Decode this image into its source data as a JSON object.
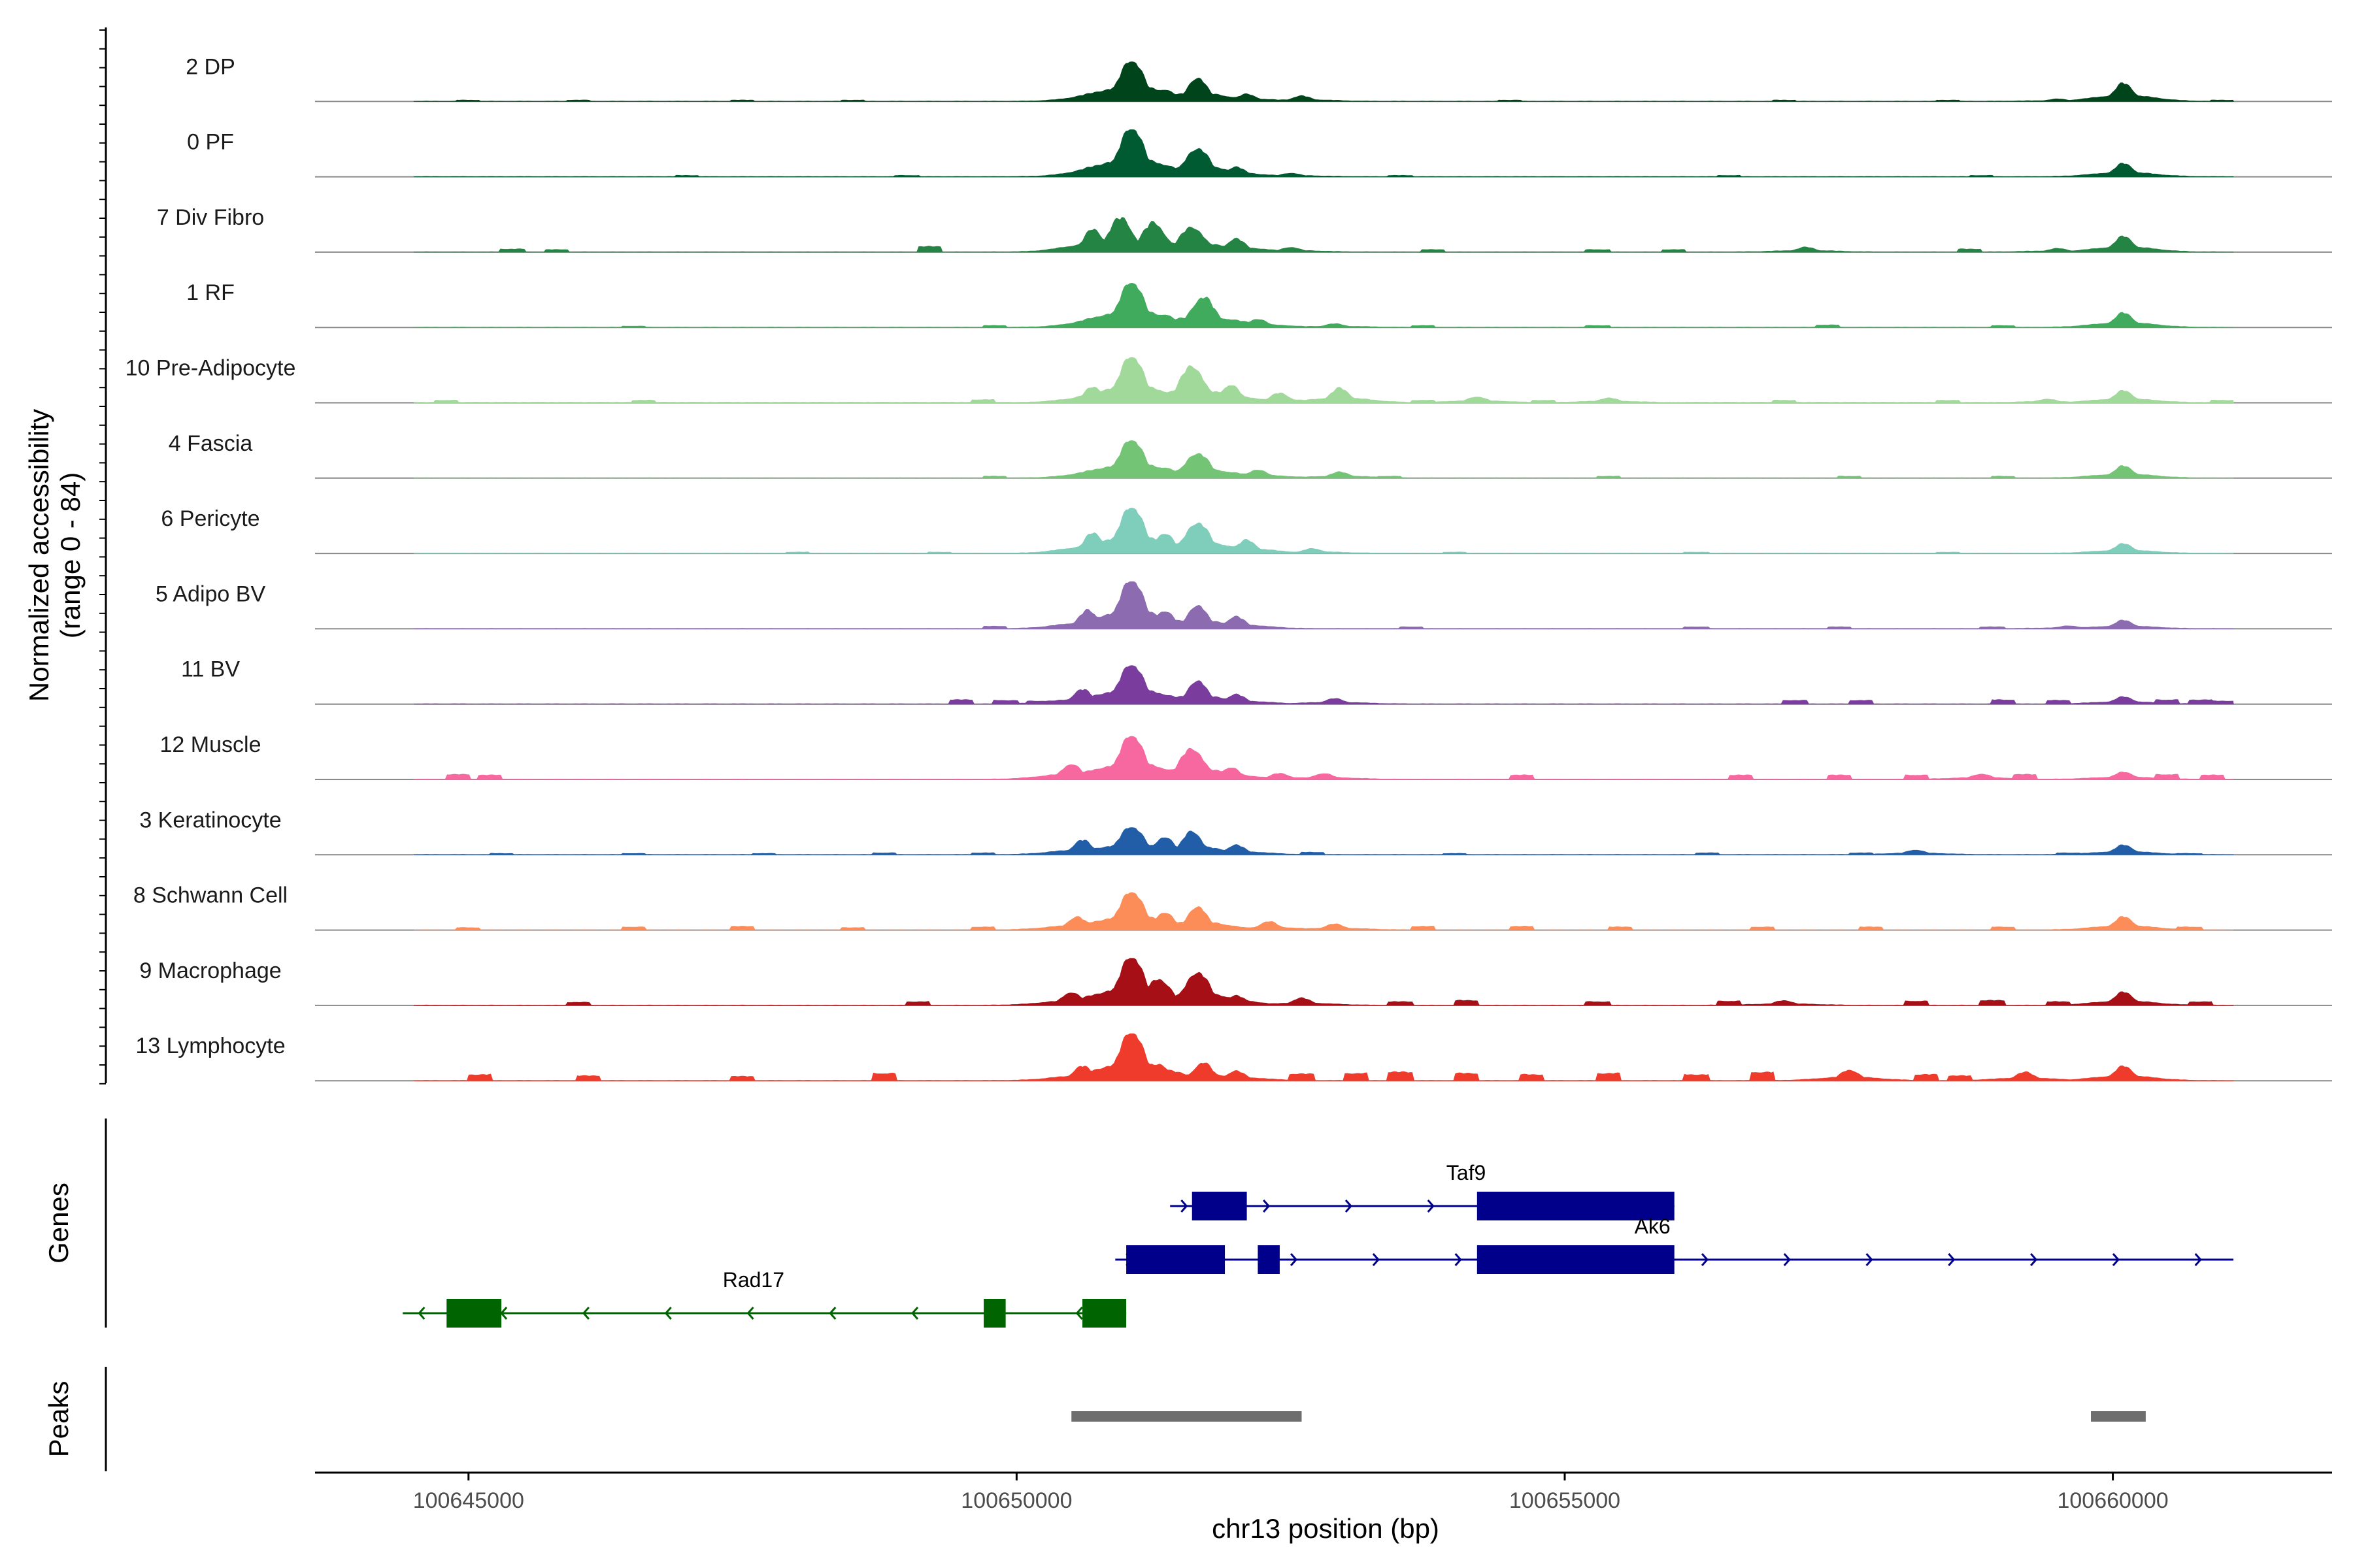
{
  "chart_data": {
    "type": "coverage",
    "title": "",
    "xlabel": "chr13 position (bp)",
    "ylabel": "Normalized accessibility",
    "ylabel_range": "(range 0 - 84)",
    "ylim": [
      0,
      84
    ],
    "xlim": [
      100643600,
      100662000
    ],
    "xticks": [
      100645000,
      100650000,
      100655000,
      100660000
    ],
    "xtick_labels": [
      "100645000",
      "100650000",
      "100655000",
      "100660000"
    ],
    "tracks": [
      {
        "name": "2 DP",
        "color": "#00441b",
        "peaks": [
          [
            100651050,
            70
          ],
          [
            100651350,
            20
          ],
          [
            100651650,
            40
          ],
          [
            100652100,
            12
          ],
          [
            100652600,
            9
          ],
          [
            100660100,
            30
          ],
          [
            100659500,
            4
          ]
        ],
        "spikes": [
          [
            100645000,
            2
          ],
          [
            100646000,
            2
          ],
          [
            100647500,
            2
          ],
          [
            100648500,
            2
          ],
          [
            100654500,
            2
          ],
          [
            100657000,
            2
          ],
          [
            100658500,
            2
          ],
          [
            100661000,
            2
          ]
        ]
      },
      {
        "name": "0 PF",
        "color": "#005a32",
        "peaks": [
          [
            100651050,
            84
          ],
          [
            100651350,
            20
          ],
          [
            100651650,
            48
          ],
          [
            100652000,
            16
          ],
          [
            100652500,
            6
          ],
          [
            100660100,
            22
          ]
        ],
        "spikes": [
          [
            100647000,
            2
          ],
          [
            100649000,
            2
          ],
          [
            100653500,
            2
          ],
          [
            100656500,
            2
          ],
          [
            100658800,
            2
          ]
        ]
      },
      {
        "name": "7 Div Fibro",
        "color": "#238443",
        "peaks": [
          [
            100650700,
            38
          ],
          [
            100650950,
            56
          ],
          [
            100651250,
            48
          ],
          [
            100651600,
            42
          ],
          [
            100652000,
            22
          ],
          [
            100652500,
            8
          ],
          [
            100660100,
            26
          ],
          [
            100657200,
            8
          ],
          [
            100659500,
            6
          ]
        ],
        "spikes": [
          [
            100645400,
            5
          ],
          [
            100645800,
            4
          ],
          [
            100649200,
            9
          ],
          [
            100653800,
            4
          ],
          [
            100655300,
            4
          ],
          [
            100656000,
            4
          ],
          [
            100658700,
            5
          ]
        ]
      },
      {
        "name": "1 RF",
        "color": "#41ab5d",
        "peaks": [
          [
            100651050,
            78
          ],
          [
            100651700,
            50
          ],
          [
            100651350,
            22
          ],
          [
            100652200,
            14
          ],
          [
            100652900,
            6
          ],
          [
            100660100,
            24
          ]
        ],
        "spikes": [
          [
            100646500,
            2
          ],
          [
            100649800,
            3
          ],
          [
            100653700,
            3
          ],
          [
            100655300,
            3
          ],
          [
            100657400,
            4
          ],
          [
            100659000,
            3
          ]
        ]
      },
      {
        "name": "10 Pre-Adipocyte",
        "color": "#a1d99b",
        "peaks": [
          [
            100650700,
            26
          ],
          [
            100651050,
            80
          ],
          [
            100651600,
            62
          ],
          [
            100651950,
            30
          ],
          [
            100652400,
            16
          ],
          [
            100652950,
            24
          ],
          [
            100654200,
            10
          ],
          [
            100655400,
            8
          ],
          [
            100660100,
            20
          ],
          [
            100659400,
            6
          ]
        ],
        "spikes": [
          [
            100644800,
            4
          ],
          [
            100646600,
            4
          ],
          [
            100649700,
            5
          ],
          [
            100653700,
            4
          ],
          [
            100654800,
            4
          ],
          [
            100657000,
            4
          ],
          [
            100658500,
            4
          ],
          [
            100661000,
            4
          ]
        ]
      },
      {
        "name": "4 Fascia",
        "color": "#74c476",
        "peaks": [
          [
            100651050,
            66
          ],
          [
            100651650,
            42
          ],
          [
            100651350,
            18
          ],
          [
            100652200,
            14
          ],
          [
            100652950,
            10
          ],
          [
            100660100,
            20
          ]
        ],
        "spikes": [
          [
            100649800,
            3
          ],
          [
            100653400,
            3
          ],
          [
            100655400,
            3
          ],
          [
            100657600,
            3
          ],
          [
            100659000,
            3
          ]
        ]
      },
      {
        "name": "6 Pericyte",
        "color": "#7fcdbb",
        "peaks": [
          [
            100650700,
            34
          ],
          [
            100651050,
            80
          ],
          [
            100651350,
            34
          ],
          [
            100651650,
            52
          ],
          [
            100652100,
            22
          ],
          [
            100652700,
            8
          ],
          [
            100660100,
            16
          ]
        ],
        "spikes": [
          [
            100648000,
            2
          ],
          [
            100649300,
            2
          ],
          [
            100654000,
            2
          ],
          [
            100656200,
            2
          ],
          [
            100658500,
            2
          ]
        ]
      },
      {
        "name": "5 Adipo BV",
        "color": "#8c6bb1",
        "peaks": [
          [
            100650650,
            30
          ],
          [
            100651050,
            84
          ],
          [
            100651650,
            40
          ],
          [
            100651350,
            30
          ],
          [
            100652000,
            20
          ],
          [
            100660100,
            14
          ],
          [
            100659600,
            5
          ]
        ],
        "spikes": [
          [
            100649800,
            4
          ],
          [
            100653600,
            3
          ],
          [
            100656200,
            3
          ],
          [
            100657500,
            3
          ],
          [
            100658900,
            3
          ]
        ]
      },
      {
        "name": "11 BV",
        "color": "#7a3d9e",
        "peaks": [
          [
            100650600,
            24
          ],
          [
            100651050,
            68
          ],
          [
            100651650,
            40
          ],
          [
            100652000,
            16
          ],
          [
            100652900,
            9
          ],
          [
            100660100,
            12
          ]
        ],
        "spikes": [
          [
            100649500,
            7
          ],
          [
            100649900,
            6
          ],
          [
            100650200,
            5
          ],
          [
            100657100,
            6
          ],
          [
            100657700,
            6
          ],
          [
            100659000,
            7
          ],
          [
            100659500,
            6
          ],
          [
            100660500,
            7
          ],
          [
            100660800,
            7
          ],
          [
            100661000,
            5
          ]
        ]
      },
      {
        "name": "12 Muscle",
        "color": "#f768a1",
        "peaks": [
          [
            100650500,
            26
          ],
          [
            100651050,
            76
          ],
          [
            100651600,
            52
          ],
          [
            100651950,
            20
          ],
          [
            100652400,
            10
          ],
          [
            100652800,
            10
          ],
          [
            100660100,
            12
          ],
          [
            100658800,
            9
          ]
        ],
        "spikes": [
          [
            100644900,
            8
          ],
          [
            100645200,
            7
          ],
          [
            100654600,
            7
          ],
          [
            100656600,
            7
          ],
          [
            100657500,
            7
          ],
          [
            100658200,
            7
          ],
          [
            100659200,
            8
          ],
          [
            100660500,
            8
          ],
          [
            100660900,
            7
          ]
        ]
      },
      {
        "name": "3 Keratinocyte",
        "color": "#225ea8",
        "peaks": [
          [
            100650600,
            24
          ],
          [
            100651050,
            48
          ],
          [
            100651350,
            30
          ],
          [
            100651600,
            40
          ],
          [
            100652000,
            16
          ],
          [
            100660100,
            16
          ],
          [
            100658200,
            8
          ]
        ],
        "spikes": [
          [
            100645300,
            2
          ],
          [
            100646500,
            2
          ],
          [
            100647700,
            2
          ],
          [
            100648800,
            3
          ],
          [
            100649700,
            3
          ],
          [
            100652700,
            4
          ],
          [
            100654000,
            2
          ],
          [
            100656300,
            3
          ],
          [
            100657700,
            3
          ],
          [
            100659600,
            3
          ],
          [
            100660700,
            2
          ]
        ]
      },
      {
        "name": "8 Schwann Cell",
        "color": "#fc8d59",
        "peaks": [
          [
            100650550,
            22
          ],
          [
            100651050,
            66
          ],
          [
            100651350,
            30
          ],
          [
            100651650,
            40
          ],
          [
            100652300,
            14
          ],
          [
            100652900,
            10
          ],
          [
            100660100,
            22
          ]
        ],
        "spikes": [
          [
            100644200,
            3
          ],
          [
            100645000,
            4
          ],
          [
            100646500,
            5
          ],
          [
            100647500,
            6
          ],
          [
            100648500,
            4
          ],
          [
            100649700,
            5
          ],
          [
            100653700,
            6
          ],
          [
            100654600,
            6
          ],
          [
            100655500,
            5
          ],
          [
            100656800,
            5
          ],
          [
            100657800,
            5
          ],
          [
            100659000,
            5
          ],
          [
            100660700,
            5
          ]
        ]
      },
      {
        "name": "9 Macrophage",
        "color": "#a50f15",
        "peaks": [
          [
            100650500,
            22
          ],
          [
            100651050,
            84
          ],
          [
            100651650,
            56
          ],
          [
            100651300,
            44
          ],
          [
            100652000,
            16
          ],
          [
            100652600,
            12
          ],
          [
            100660100,
            22
          ],
          [
            100657000,
            8
          ]
        ],
        "spikes": [
          [
            100646000,
            5
          ],
          [
            100649100,
            6
          ],
          [
            100653500,
            6
          ],
          [
            100654100,
            8
          ],
          [
            100655300,
            6
          ],
          [
            100656500,
            7
          ],
          [
            100658200,
            7
          ],
          [
            100658900,
            8
          ],
          [
            100659500,
            6
          ],
          [
            100660800,
            6
          ]
        ]
      },
      {
        "name": "13 Lymphocyte",
        "color": "#ef3b2c",
        "peaks": [
          [
            100650600,
            24
          ],
          [
            100651050,
            84
          ],
          [
            100651300,
            28
          ],
          [
            100651700,
            30
          ],
          [
            100652000,
            16
          ],
          [
            100660100,
            24
          ],
          [
            100657600,
            18
          ],
          [
            100659200,
            14
          ]
        ],
        "spikes": [
          [
            100645100,
            10
          ],
          [
            100646100,
            8
          ],
          [
            100647500,
            7
          ],
          [
            100648800,
            12
          ],
          [
            100652600,
            11
          ],
          [
            100653100,
            12
          ],
          [
            100653500,
            14
          ],
          [
            100654100,
            12
          ],
          [
            100654700,
            10
          ],
          [
            100655400,
            12
          ],
          [
            100656200,
            10
          ],
          [
            100656800,
            14
          ],
          [
            100658300,
            10
          ],
          [
            100658600,
            8
          ]
        ]
      }
    ],
    "genes": [
      {
        "name": "Taf9",
        "strand": "+",
        "color": "#00008b",
        "start": 100651400,
        "end": 100656000,
        "exons": [
          [
            100651600,
            100652100
          ],
          [
            100654200,
            100656000
          ]
        ],
        "label_x": 100654100
      },
      {
        "name": "Ak6",
        "strand": "+",
        "color": "#00008b",
        "start": 100650900,
        "end": 100661100,
        "exons": [
          [
            100651000,
            100651900
          ],
          [
            100652200,
            100652400
          ],
          [
            100654200,
            100655100
          ],
          [
            100655000,
            100656000
          ]
        ],
        "label_x": 100655800
      },
      {
        "name": "Rad17",
        "strand": "-",
        "color": "#006400",
        "start": 100644400,
        "end": 100651000,
        "exons": [
          [
            100644800,
            100645300
          ],
          [
            100649700,
            100649900
          ],
          [
            100650600,
            100651000
          ]
        ],
        "label_x": 100647600
      }
    ],
    "peaks_track": [
      [
        100650500,
        100652600
      ],
      [
        100659800,
        100660300
      ]
    ],
    "panel_titles": {
      "genes": "Genes",
      "peaks": "Peaks"
    }
  }
}
